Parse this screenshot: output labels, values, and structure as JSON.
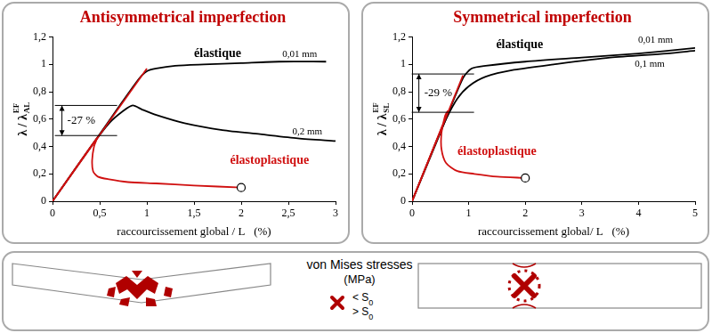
{
  "chart_data": [
    {
      "type": "line",
      "title": "Antisymmetrical imperfection",
      "xlabel": "raccourcissement global / L   (%)",
      "ylabel": {
        "text": "λ / λ",
        "sub": "AL",
        "sup": "EF"
      },
      "xlim": [
        0,
        3
      ],
      "xticks": [
        0,
        {
          "value": 0.5,
          "label": "0,5"
        },
        1,
        {
          "value": 1.5,
          "label": "1,5"
        },
        2,
        {
          "value": 2.5,
          "label": "2,5"
        },
        3
      ],
      "ylim": [
        0,
        1.2
      ],
      "yticks": [
        0,
        {
          "value": 0.2,
          "label": "0,2"
        },
        {
          "value": 0.4,
          "label": "0,4"
        },
        {
          "value": 0.6,
          "label": "0,6"
        },
        {
          "value": 0.8,
          "label": "0,8"
        },
        1,
        {
          "value": 1.2,
          "label": "1,2"
        }
      ],
      "grid": false,
      "series": [
        {
          "color": "#000000",
          "x": [
            0,
            0.5,
            0.9,
            1.0,
            1.1,
            1.3,
            1.6,
            2.0,
            2.4,
            2.9
          ],
          "values": [
            0,
            0.49,
            0.88,
            0.95,
            0.97,
            0.99,
            1.0,
            1.01,
            1.02,
            1.02
          ]
        },
        {
          "color": "#000000",
          "x": [
            0,
            0.4,
            0.6,
            0.75,
            0.85,
            0.95,
            1.1,
            1.4,
            1.8,
            2.2,
            2.6,
            3.0
          ],
          "values": [
            0,
            0.39,
            0.57,
            0.66,
            0.7,
            0.67,
            0.63,
            0.57,
            0.52,
            0.49,
            0.46,
            0.44
          ]
        },
        {
          "color": "#d01010",
          "x": [
            0,
            1.0
          ],
          "values": [
            0,
            0.97
          ]
        },
        {
          "color": "#d01010",
          "marker": "circle",
          "x": [
            0,
            0.47,
            0.44,
            0.42,
            0.43,
            0.48,
            0.6,
            0.8,
            1.1,
            1.5,
            2.0
          ],
          "values": [
            0,
            0.46,
            0.4,
            0.3,
            0.22,
            0.18,
            0.16,
            0.14,
            0.13,
            0.115,
            0.1
          ]
        }
      ],
      "annotations": [
        {
          "text": "élastique",
          "x": 1.75,
          "y": 1.08,
          "color": "#000000"
        },
        {
          "text": "élastoplastique",
          "x": 2.3,
          "y": 0.3,
          "color": "#d01010"
        }
      ],
      "curve_labels": [
        {
          "text": "0,01 mm",
          "x": 2.62,
          "y": 1.07
        },
        {
          "text": "0,2 mm",
          "x": 2.7,
          "y": 0.51
        }
      ],
      "brackets": [
        {
          "text": "-27 %",
          "x": 0.1,
          "y_from": 0.7,
          "y_to": 0.48
        }
      ]
    },
    {
      "type": "line",
      "title": "Symmetrical imperfection",
      "xlabel": "raccourcissement global/ L   (%)",
      "ylabel": {
        "text": "λ / λ",
        "sub": "SL",
        "sup": "EF"
      },
      "xlim": [
        0,
        5
      ],
      "xticks": [
        0,
        1,
        2,
        3,
        4,
        5
      ],
      "ylim": [
        0,
        1.2
      ],
      "yticks": [
        0,
        {
          "value": 0.2,
          "label": "0,2"
        },
        {
          "value": 0.4,
          "label": "0,4"
        },
        {
          "value": 0.6,
          "label": "0,6"
        },
        {
          "value": 0.8,
          "label": "0,8"
        },
        1,
        {
          "value": 1.2,
          "label": "1,2"
        }
      ],
      "grid": false,
      "series": [
        {
          "color": "#000000",
          "x": [
            0,
            0.5,
            0.9,
            1.05,
            1.3,
            2,
            3,
            4,
            5
          ],
          "values": [
            0,
            0.5,
            0.9,
            0.97,
            0.99,
            1.02,
            1.05,
            1.08,
            1.12
          ]
        },
        {
          "color": "#000000",
          "x": [
            0,
            0.4,
            0.6,
            0.8,
            1.0,
            1.3,
            1.8,
            2.5,
            3.5,
            4.5,
            5
          ],
          "values": [
            0,
            0.41,
            0.6,
            0.75,
            0.84,
            0.91,
            0.96,
            1.0,
            1.05,
            1.08,
            1.1
          ]
        },
        {
          "color": "#d01010",
          "x": [
            0,
            0.9
          ],
          "values": [
            0,
            0.92
          ]
        },
        {
          "color": "#d01010",
          "marker": "circle",
          "x": [
            0,
            0.6,
            0.63,
            0.58,
            0.52,
            0.52,
            0.6,
            0.8,
            1.1,
            1.5,
            2.0
          ],
          "values": [
            0,
            0.62,
            0.66,
            0.62,
            0.5,
            0.38,
            0.28,
            0.22,
            0.2,
            0.18,
            0.17
          ]
        }
      ],
      "annotations": [
        {
          "text": "élastique",
          "x": 1.9,
          "y": 1.14,
          "color": "#000000"
        },
        {
          "text": "élastoplastique",
          "x": 1.5,
          "y": 0.36,
          "color": "#d01010"
        }
      ],
      "curve_labels": [
        {
          "text": "0,01 mm",
          "x": 4.3,
          "y": 1.18
        },
        {
          "text": "0,1 mm",
          "x": 4.2,
          "y": 1.0
        }
      ],
      "brackets": [
        {
          "text": "-29 %",
          "x": 0.12,
          "y_from": 0.93,
          "y_to": 0.65
        }
      ]
    }
  ],
  "stress_maps": {
    "title": "von Mises stresses",
    "unit": "(MPa)",
    "color": "#b00000",
    "legend": [
      {
        "label": "< S",
        "sub": "0"
      },
      {
        "label": "> S",
        "sub": "0"
      }
    ]
  }
}
